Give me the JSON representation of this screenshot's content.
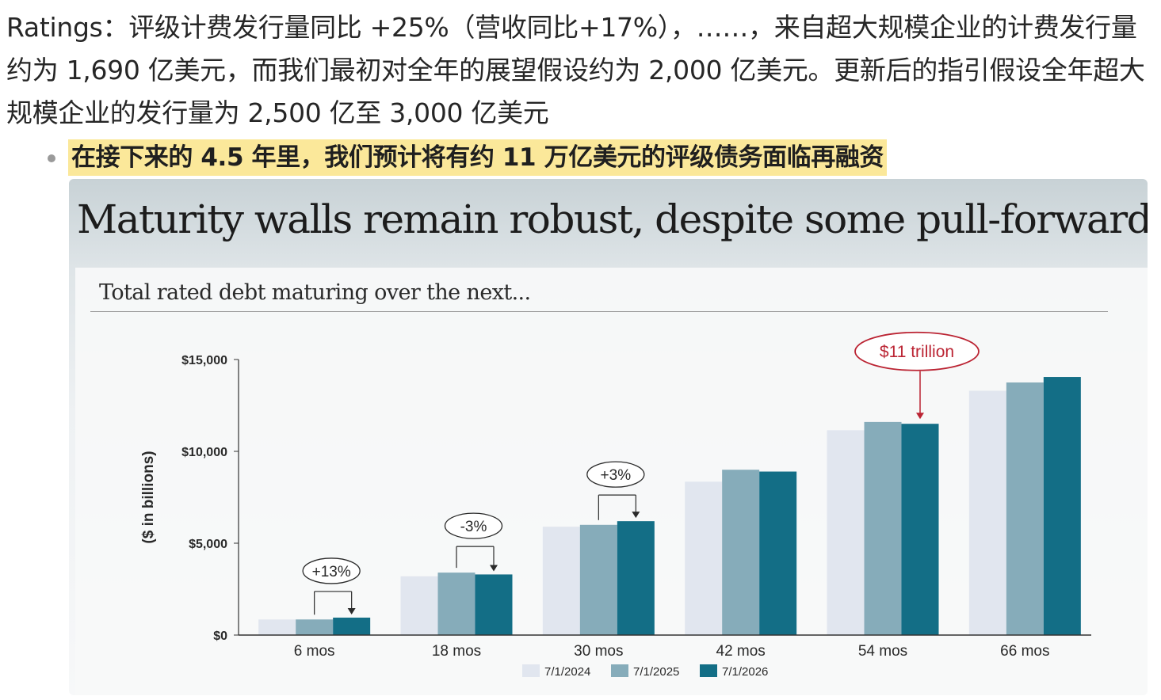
{
  "text": {
    "paragraph": "Ratings：评级计费发行量同比 +25%（营收同比+17%），……，来自超大规模企业的计费发行量约为 1,690 亿美元，而我们最初对全年的展望假设约为 2,000 亿美元。更新后的指引假设全年超大规模企业的发行量为 2,500 亿至 3,000 亿美元",
    "bullet": "在接下来的 4.5 年里，我们预计将有约 11 万亿美元的评级债务面临再融资"
  },
  "slide": {
    "title": "Maturity walls remain robust, despite some pull-forward",
    "subtitle": "Total rated debt maturing over the next..."
  },
  "colors": {
    "series": [
      "#e1e6ef",
      "#86acba",
      "#136e86"
    ],
    "axis": "#333333",
    "highlight": "#bb2433"
  },
  "chart_data": {
    "type": "bar",
    "ylabel": "($ in billions)",
    "ylim": [
      0,
      15000
    ],
    "yticks": [
      "$0",
      "$5,000",
      "$10,000",
      "$15,000"
    ],
    "categories": [
      "6 mos",
      "18 mos",
      "30 mos",
      "42 mos",
      "54 mos",
      "66 mos"
    ],
    "series": [
      {
        "name": "7/1/2024",
        "values": [
          850,
          3200,
          5900,
          8350,
          11150,
          13300
        ]
      },
      {
        "name": "7/1/2025",
        "values": [
          850,
          3400,
          6000,
          9000,
          11600,
          13750
        ]
      },
      {
        "name": "7/1/2026",
        "values": [
          950,
          3300,
          6200,
          8900,
          11500,
          14050
        ]
      }
    ],
    "legend_position": "bottom-center",
    "annotations": [
      {
        "category": "6 mos",
        "text": "+13%"
      },
      {
        "category": "18 mos",
        "text": "-3%"
      },
      {
        "category": "30 mos",
        "text": "+3%"
      },
      {
        "category": "54 mos",
        "text": "$11 trillion"
      }
    ]
  }
}
